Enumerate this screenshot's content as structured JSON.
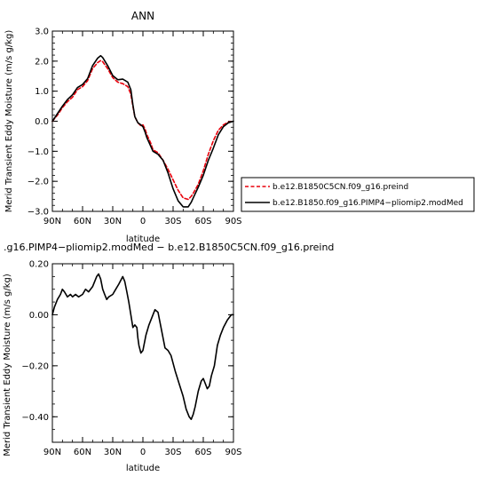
{
  "chart_data": [
    {
      "type": "line",
      "title": "ANN",
      "xlabel": "latitude",
      "ylabel": "Merid Transient Eddy Moisture (m/s g/kg)",
      "x_ticks": [
        90,
        60,
        30,
        0,
        -30,
        -60,
        -90
      ],
      "x_tick_labels": [
        "90N",
        "60N",
        "30N",
        "0",
        "30S",
        "60S",
        "90S"
      ],
      "xlim": [
        90,
        -90
      ],
      "ylim": [
        -3.0,
        3.0
      ],
      "y_ticks": [
        -3.0,
        -2.0,
        -1.0,
        0.0,
        1.0,
        2.0,
        3.0
      ],
      "y_tick_labels": [
        "−3.0",
        "−2.0",
        "−1.0",
        "0.0",
        "1.0",
        "2.0",
        "3.0"
      ],
      "legend_position": "right",
      "series": [
        {
          "name": "b.e12.B1850C5CN.f09_g16.preind",
          "color": "#e8000b",
          "dash": "dashed",
          "x": [
            90,
            85,
            80,
            75,
            70,
            65,
            60,
            55,
            50,
            45,
            42,
            40,
            35,
            30,
            25,
            20,
            15,
            12,
            10,
            8,
            5,
            2,
            0,
            -2,
            -4,
            -6,
            -8,
            -10,
            -15,
            -20,
            -25,
            -30,
            -35,
            -40,
            -45,
            -48,
            -50,
            -55,
            -60,
            -65,
            -70,
            -75,
            -80,
            -85,
            -90
          ],
          "y": [
            0.0,
            0.2,
            0.45,
            0.65,
            0.8,
            1.05,
            1.15,
            1.35,
            1.75,
            1.95,
            2.02,
            1.98,
            1.75,
            1.45,
            1.3,
            1.25,
            1.15,
            0.9,
            0.5,
            0.15,
            -0.05,
            -0.15,
            -0.12,
            -0.25,
            -0.45,
            -0.6,
            -0.75,
            -0.95,
            -1.05,
            -1.3,
            -1.6,
            -1.95,
            -2.3,
            -2.55,
            -2.6,
            -2.5,
            -2.4,
            -2.1,
            -1.65,
            -1.1,
            -0.65,
            -0.3,
            -0.12,
            -0.03,
            0.0
          ]
        },
        {
          "name": "b.e12.B1850.f09_g16.PIMP4−pliomip2.modMed",
          "color": "#000000",
          "dash": "solid",
          "x": [
            90,
            85,
            80,
            75,
            70,
            65,
            60,
            55,
            50,
            45,
            42,
            40,
            35,
            30,
            25,
            20,
            15,
            12,
            10,
            8,
            5,
            2,
            0,
            -2,
            -4,
            -6,
            -8,
            -10,
            -15,
            -20,
            -25,
            -30,
            -35,
            -40,
            -45,
            -48,
            -50,
            -55,
            -60,
            -65,
            -70,
            -75,
            -80,
            -85,
            -90
          ],
          "y": [
            0.0,
            0.25,
            0.5,
            0.72,
            0.88,
            1.12,
            1.22,
            1.42,
            1.85,
            2.1,
            2.18,
            2.12,
            1.85,
            1.52,
            1.38,
            1.4,
            1.3,
            1.05,
            0.55,
            0.15,
            -0.05,
            -0.12,
            -0.18,
            -0.35,
            -0.55,
            -0.7,
            -0.85,
            -1.0,
            -1.1,
            -1.3,
            -1.72,
            -2.25,
            -2.65,
            -2.85,
            -2.85,
            -2.7,
            -2.55,
            -2.2,
            -1.8,
            -1.3,
            -0.9,
            -0.45,
            -0.18,
            -0.05,
            0.0
          ]
        }
      ]
    },
    {
      "type": "line",
      "title": ".g16.PIMP4−pliomip2.modMed − b.e12.B1850C5CN.f09_g16.preind",
      "xlabel": "latitude",
      "ylabel": "Merid Transient Eddy Moisture (m/s g/kg)",
      "x_ticks": [
        90,
        60,
        30,
        0,
        -30,
        -60,
        -90
      ],
      "x_tick_labels": [
        "90N",
        "60N",
        "30N",
        "0",
        "30S",
        "60S",
        "90S"
      ],
      "xlim": [
        90,
        -90
      ],
      "ylim": [
        -0.5,
        0.2
      ],
      "y_ticks": [
        -0.4,
        -0.2,
        0.0,
        0.2
      ],
      "y_tick_labels": [
        "−0.40",
        "−0.20",
        "0.00",
        "0.20"
      ],
      "series": [
        {
          "color": "#000000",
          "dash": "solid",
          "x": [
            90,
            88,
            85,
            82,
            80,
            78,
            75,
            72,
            70,
            67,
            64,
            60,
            57,
            54,
            50,
            46,
            44,
            42,
            40,
            38,
            36,
            34,
            30,
            27,
            24,
            20,
            18,
            16,
            14,
            12,
            10,
            8,
            6,
            5,
            4,
            2,
            0,
            -3,
            -6,
            -9,
            -12,
            -15,
            -18,
            -22,
            -25,
            -28,
            -32,
            -36,
            -40,
            -43,
            -46,
            -48,
            -50,
            -52,
            -55,
            -58,
            -60,
            -62,
            -64,
            -66,
            -68,
            -71,
            -74,
            -77,
            -80,
            -84,
            -88,
            -90
          ],
          "y": [
            0.0,
            0.03,
            0.06,
            0.08,
            0.1,
            0.09,
            0.07,
            0.08,
            0.07,
            0.08,
            0.07,
            0.08,
            0.1,
            0.09,
            0.11,
            0.15,
            0.16,
            0.14,
            0.1,
            0.08,
            0.06,
            0.07,
            0.08,
            0.1,
            0.12,
            0.15,
            0.13,
            0.09,
            0.05,
            0.0,
            -0.05,
            -0.04,
            -0.05,
            -0.09,
            -0.12,
            -0.15,
            -0.14,
            -0.08,
            -0.04,
            -0.01,
            0.02,
            0.01,
            -0.05,
            -0.13,
            -0.14,
            -0.16,
            -0.22,
            -0.27,
            -0.32,
            -0.37,
            -0.4,
            -0.41,
            -0.39,
            -0.36,
            -0.3,
            -0.26,
            -0.25,
            -0.27,
            -0.29,
            -0.28,
            -0.24,
            -0.2,
            -0.12,
            -0.08,
            -0.05,
            -0.02,
            0.0,
            0.0
          ]
        }
      ]
    }
  ]
}
